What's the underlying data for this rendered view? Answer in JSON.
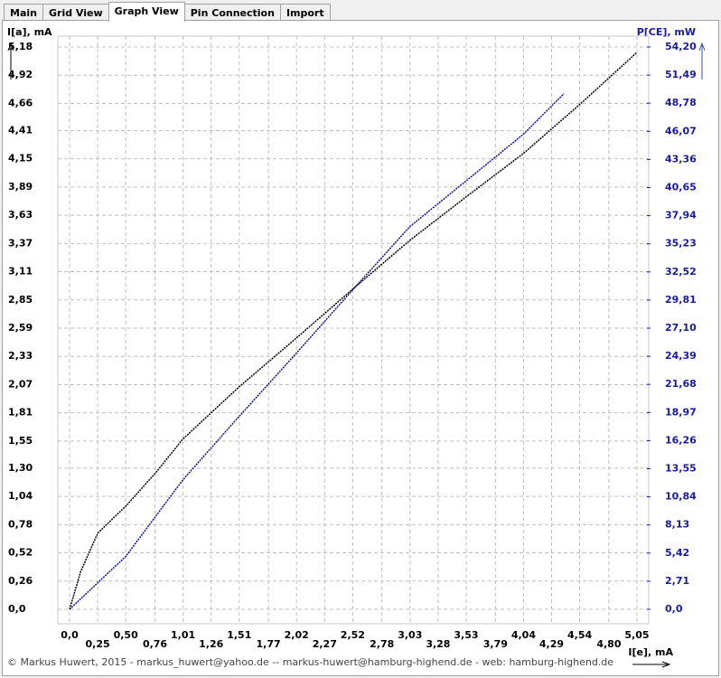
{
  "tabs": [
    "Main",
    "Grid View",
    "Graph View",
    "Pin Connection",
    "Import"
  ],
  "footer": "© Markus Huwert, 2015  -  markus_huwert@yahoo.de  --  markus-huwert@hamburg-highend.de  -  web: hamburg-highend.de",
  "chart_data": {
    "type": "line",
    "ylabel": "I[a], mA",
    "y2label": "P[CE], mW",
    "xlabel": "I[e], mA",
    "grid": true,
    "xlim": [
      0,
      5.05
    ],
    "ylim": [
      0,
      5.18
    ],
    "y2lim": [
      0,
      54.2
    ],
    "xticks": [
      {
        "value": 0,
        "label": "0,0"
      },
      {
        "value": 0.25,
        "label": "0,25"
      },
      {
        "value": 0.5,
        "label": "0,50"
      },
      {
        "value": 0.76,
        "label": "0,76"
      },
      {
        "value": 1.01,
        "label": "1,01"
      },
      {
        "value": 1.26,
        "label": "1,26"
      },
      {
        "value": 1.51,
        "label": "1,51"
      },
      {
        "value": 1.77,
        "label": "1,77"
      },
      {
        "value": 2.02,
        "label": "2,02"
      },
      {
        "value": 2.27,
        "label": "2,27"
      },
      {
        "value": 2.52,
        "label": "2,52"
      },
      {
        "value": 2.78,
        "label": "2,78"
      },
      {
        "value": 3.03,
        "label": "3,03"
      },
      {
        "value": 3.28,
        "label": "3,28"
      },
      {
        "value": 3.53,
        "label": "3,53"
      },
      {
        "value": 3.79,
        "label": "3,79"
      },
      {
        "value": 4.04,
        "label": "4,04"
      },
      {
        "value": 4.29,
        "label": "4,29"
      },
      {
        "value": 4.54,
        "label": "4,54"
      },
      {
        "value": 4.8,
        "label": "4,80"
      },
      {
        "value": 5.05,
        "label": "5,05"
      }
    ],
    "yticks": [
      {
        "value": 0,
        "label": "0,0"
      },
      {
        "value": 0.26,
        "label": "0,26"
      },
      {
        "value": 0.52,
        "label": "0,52"
      },
      {
        "value": 0.78,
        "label": "0,78"
      },
      {
        "value": 1.04,
        "label": "1,04"
      },
      {
        "value": 1.3,
        "label": "1,30"
      },
      {
        "value": 1.55,
        "label": "1,55"
      },
      {
        "value": 1.81,
        "label": "1,81"
      },
      {
        "value": 2.07,
        "label": "2,07"
      },
      {
        "value": 2.33,
        "label": "2,33"
      },
      {
        "value": 2.59,
        "label": "2,59"
      },
      {
        "value": 2.85,
        "label": "2,85"
      },
      {
        "value": 3.11,
        "label": "3,11"
      },
      {
        "value": 3.37,
        "label": "3,37"
      },
      {
        "value": 3.63,
        "label": "3,63"
      },
      {
        "value": 3.89,
        "label": "3,89"
      },
      {
        "value": 4.15,
        "label": "4,15"
      },
      {
        "value": 4.41,
        "label": "4,41"
      },
      {
        "value": 4.66,
        "label": "4,66"
      },
      {
        "value": 4.92,
        "label": "4,92"
      },
      {
        "value": 5.18,
        "label": "5,18"
      }
    ],
    "y2ticks": [
      {
        "value": 0,
        "label": "0,0"
      },
      {
        "value": 2.71,
        "label": "2,71"
      },
      {
        "value": 5.42,
        "label": "5,42"
      },
      {
        "value": 8.13,
        "label": "8,13"
      },
      {
        "value": 10.84,
        "label": "10,84"
      },
      {
        "value": 13.55,
        "label": "13,55"
      },
      {
        "value": 16.26,
        "label": "16,26"
      },
      {
        "value": 18.97,
        "label": "18,97"
      },
      {
        "value": 21.68,
        "label": "21,68"
      },
      {
        "value": 24.39,
        "label": "24,39"
      },
      {
        "value": 27.1,
        "label": "27,10"
      },
      {
        "value": 29.81,
        "label": "29,81"
      },
      {
        "value": 32.52,
        "label": "32,52"
      },
      {
        "value": 35.23,
        "label": "35,23"
      },
      {
        "value": 37.94,
        "label": "37,94"
      },
      {
        "value": 40.65,
        "label": "40,65"
      },
      {
        "value": 43.36,
        "label": "43,36"
      },
      {
        "value": 46.07,
        "label": "46,07"
      },
      {
        "value": 48.78,
        "label": "48,78"
      },
      {
        "value": 51.49,
        "label": "51,49"
      },
      {
        "value": 54.2,
        "label": "54,20"
      }
    ],
    "series": [
      {
        "color": "#000000",
        "x": [
          0,
          0.1,
          0.25,
          0.5,
          0.76,
          1.01,
          1.51,
          2.02,
          2.52,
          3.03,
          3.53,
          4.04,
          4.54,
          5.05
        ],
        "values": [
          0,
          0.35,
          0.7,
          0.95,
          1.25,
          1.57,
          2.05,
          2.5,
          2.95,
          3.4,
          3.8,
          4.2,
          4.65,
          5.13
        ]
      },
      {
        "color": "#1010a0",
        "axis": "y2",
        "x": [
          0,
          0.5,
          1.01,
          1.51,
          2.02,
          2.52,
          3.03,
          3.53,
          4.04,
          4.4
        ],
        "values": [
          0,
          5.1,
          12.5,
          18.6,
          24.7,
          30.8,
          36.9,
          41.3,
          45.8,
          49.7
        ]
      }
    ]
  }
}
